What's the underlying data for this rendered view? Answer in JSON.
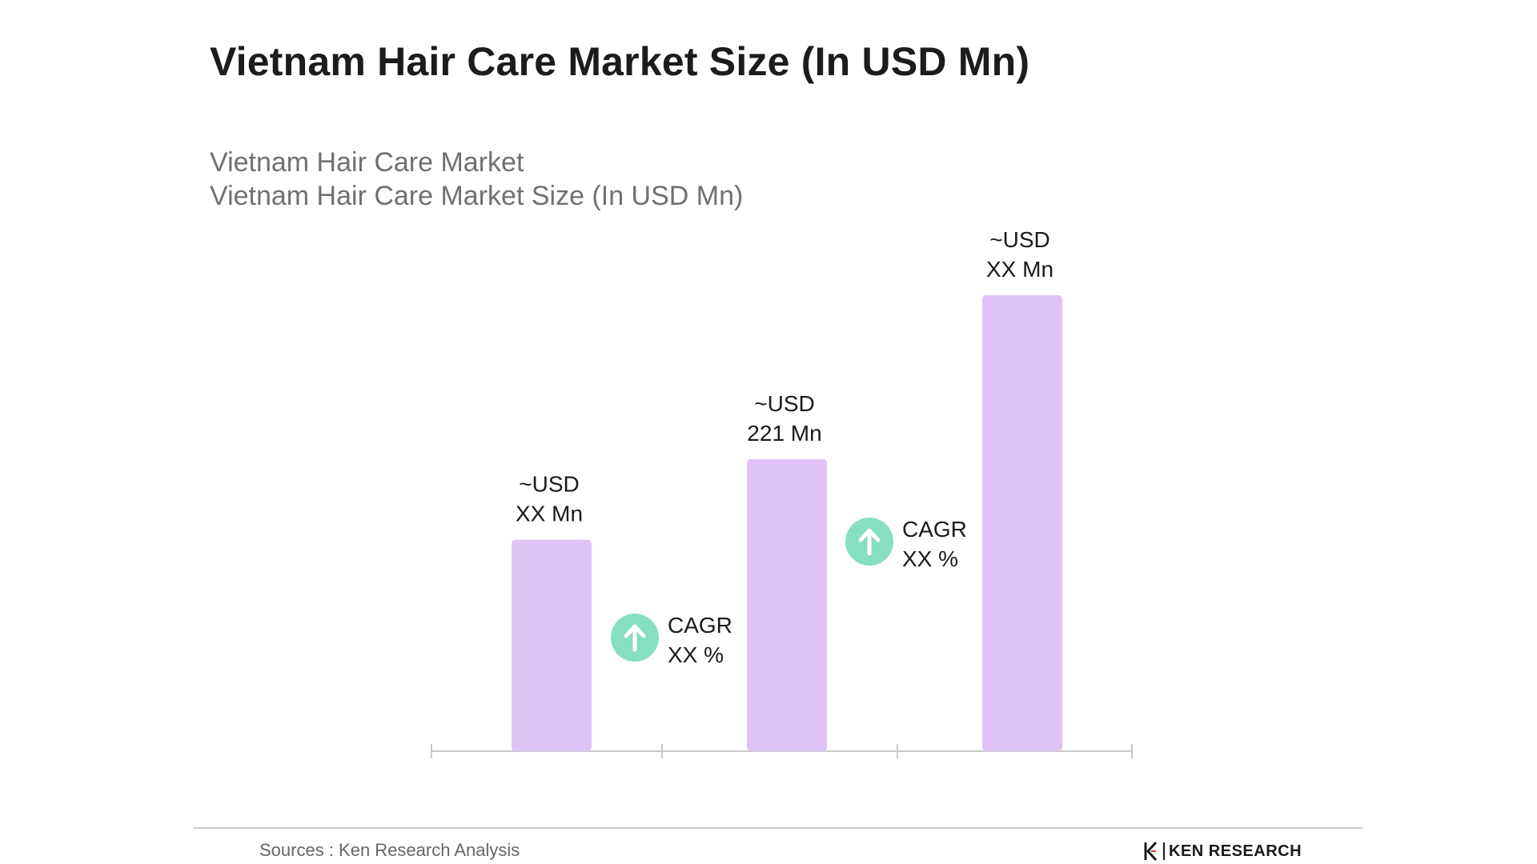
{
  "title": "Vietnam Hair Care Market Size (In USD Mn)",
  "subtitle_line1": "Vietnam Hair Care Market",
  "subtitle_line2": "Vietnam Hair Care Market Size (In USD Mn)",
  "chart_data": {
    "type": "bar",
    "title": "Vietnam Hair Care Market Size (In USD Mn)",
    "categories": [
      "",
      "",
      ""
    ],
    "values": [
      160,
      221,
      345
    ],
    "data_labels": [
      [
        "~USD",
        "XX Mn"
      ],
      [
        "~USD",
        "221 Mn"
      ],
      [
        "~USD",
        "XX Mn"
      ]
    ],
    "cagr_annotations": [
      [
        "CAGR",
        "XX %"
      ],
      [
        "CAGR",
        "XX %"
      ]
    ],
    "ylim": [
      0,
      345
    ],
    "grid": false,
    "legend": "none",
    "bar_color": "#dfc3f7",
    "cagr_icon_color": "#86dfc1",
    "axis_color": "#c9c9c9"
  },
  "footer": {
    "source": "Sources : Ken Research Analysis",
    "logo_text": "KEN RESEARCH"
  }
}
